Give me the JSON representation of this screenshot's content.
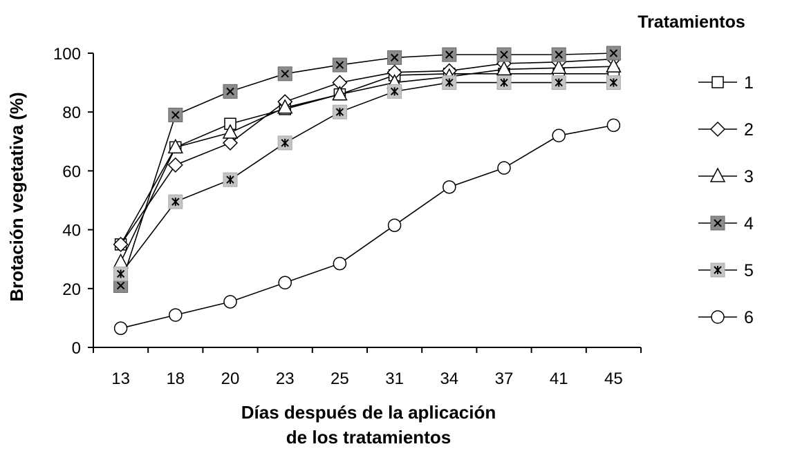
{
  "chart_data": {
    "type": "line",
    "xlabel_line1": "Días después de la aplicación",
    "xlabel_line2": "de los tratamientos",
    "ylabel": "Brotación vegetativa (%)",
    "legend_title": "Tratamientos",
    "legend_position": "right",
    "categories": [
      "13",
      "18",
      "20",
      "23",
      "25",
      "31",
      "34",
      "37",
      "41",
      "45"
    ],
    "ylim": [
      0,
      100
    ],
    "yticks": [
      "0",
      "20",
      "40",
      "60",
      "80",
      "100"
    ],
    "grid": false,
    "series": [
      {
        "name": "1",
        "marker": "square",
        "values": [
          35,
          68,
          76,
          81,
          86,
          92.5,
          93,
          93,
          93,
          93
        ]
      },
      {
        "name": "2",
        "marker": "diamond",
        "values": [
          35,
          62,
          69.5,
          83.5,
          90,
          93.5,
          94,
          96.5,
          97,
          98
        ]
      },
      {
        "name": "3",
        "marker": "triangle",
        "values": [
          29,
          68,
          73,
          81.5,
          86,
          90,
          92,
          94.5,
          95,
          95.5
        ]
      },
      {
        "name": "4",
        "marker": "x-box-dark",
        "values": [
          21,
          79,
          87,
          93,
          96,
          98.5,
          99.5,
          99.5,
          99.5,
          100
        ]
      },
      {
        "name": "5",
        "marker": "star-box-light",
        "values": [
          25,
          49.5,
          57,
          69.5,
          80,
          87,
          90,
          90,
          90,
          90
        ]
      },
      {
        "name": "6",
        "marker": "circle",
        "values": [
          6.5,
          11,
          15.5,
          22,
          28.5,
          41.5,
          54.5,
          61,
          72,
          75.5
        ]
      }
    ]
  }
}
